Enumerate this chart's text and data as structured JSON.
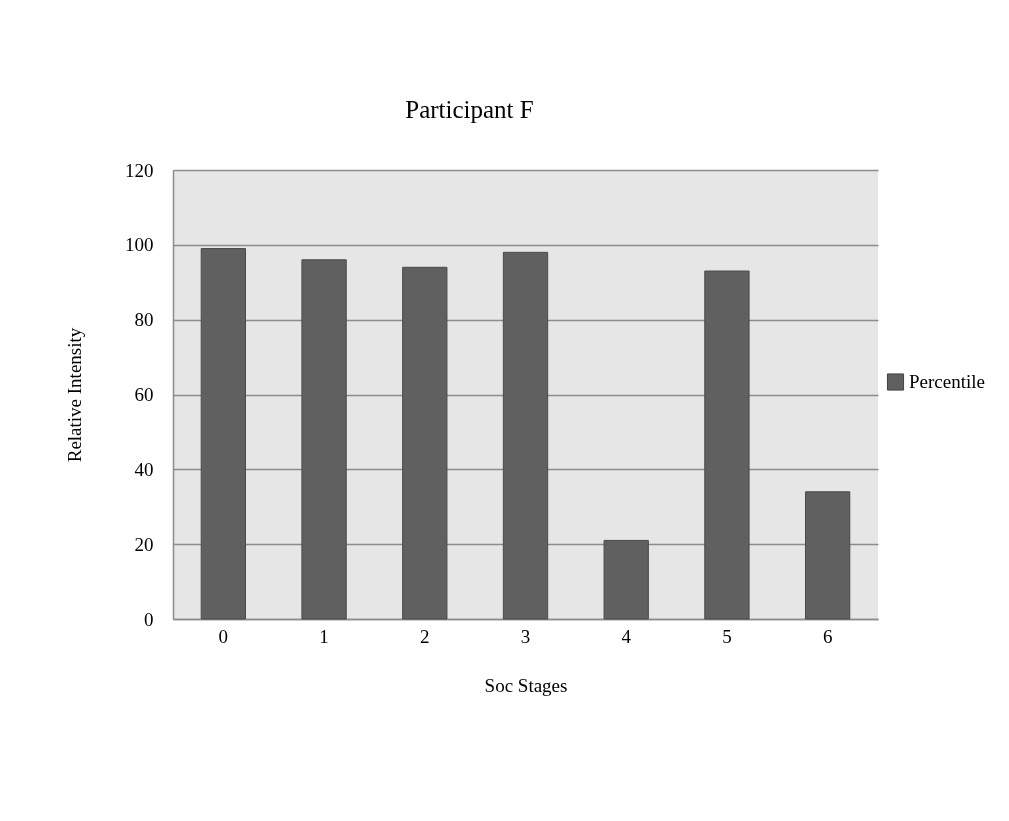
{
  "chart_data": {
    "type": "bar",
    "title": "Participant F",
    "xlabel": "Soc Stages",
    "ylabel": "Relative Intensity",
    "categories": [
      "0",
      "1",
      "2",
      "3",
      "4",
      "5",
      "6"
    ],
    "series": [
      {
        "name": "Percentile",
        "color": "#606060",
        "values": [
          99,
          96,
          94,
          98,
          21,
          93,
          34
        ]
      }
    ],
    "ylim": [
      0,
      120
    ],
    "yticks": [
      0,
      20,
      40,
      60,
      80,
      100,
      120
    ],
    "grid": "y",
    "legend": "right"
  }
}
